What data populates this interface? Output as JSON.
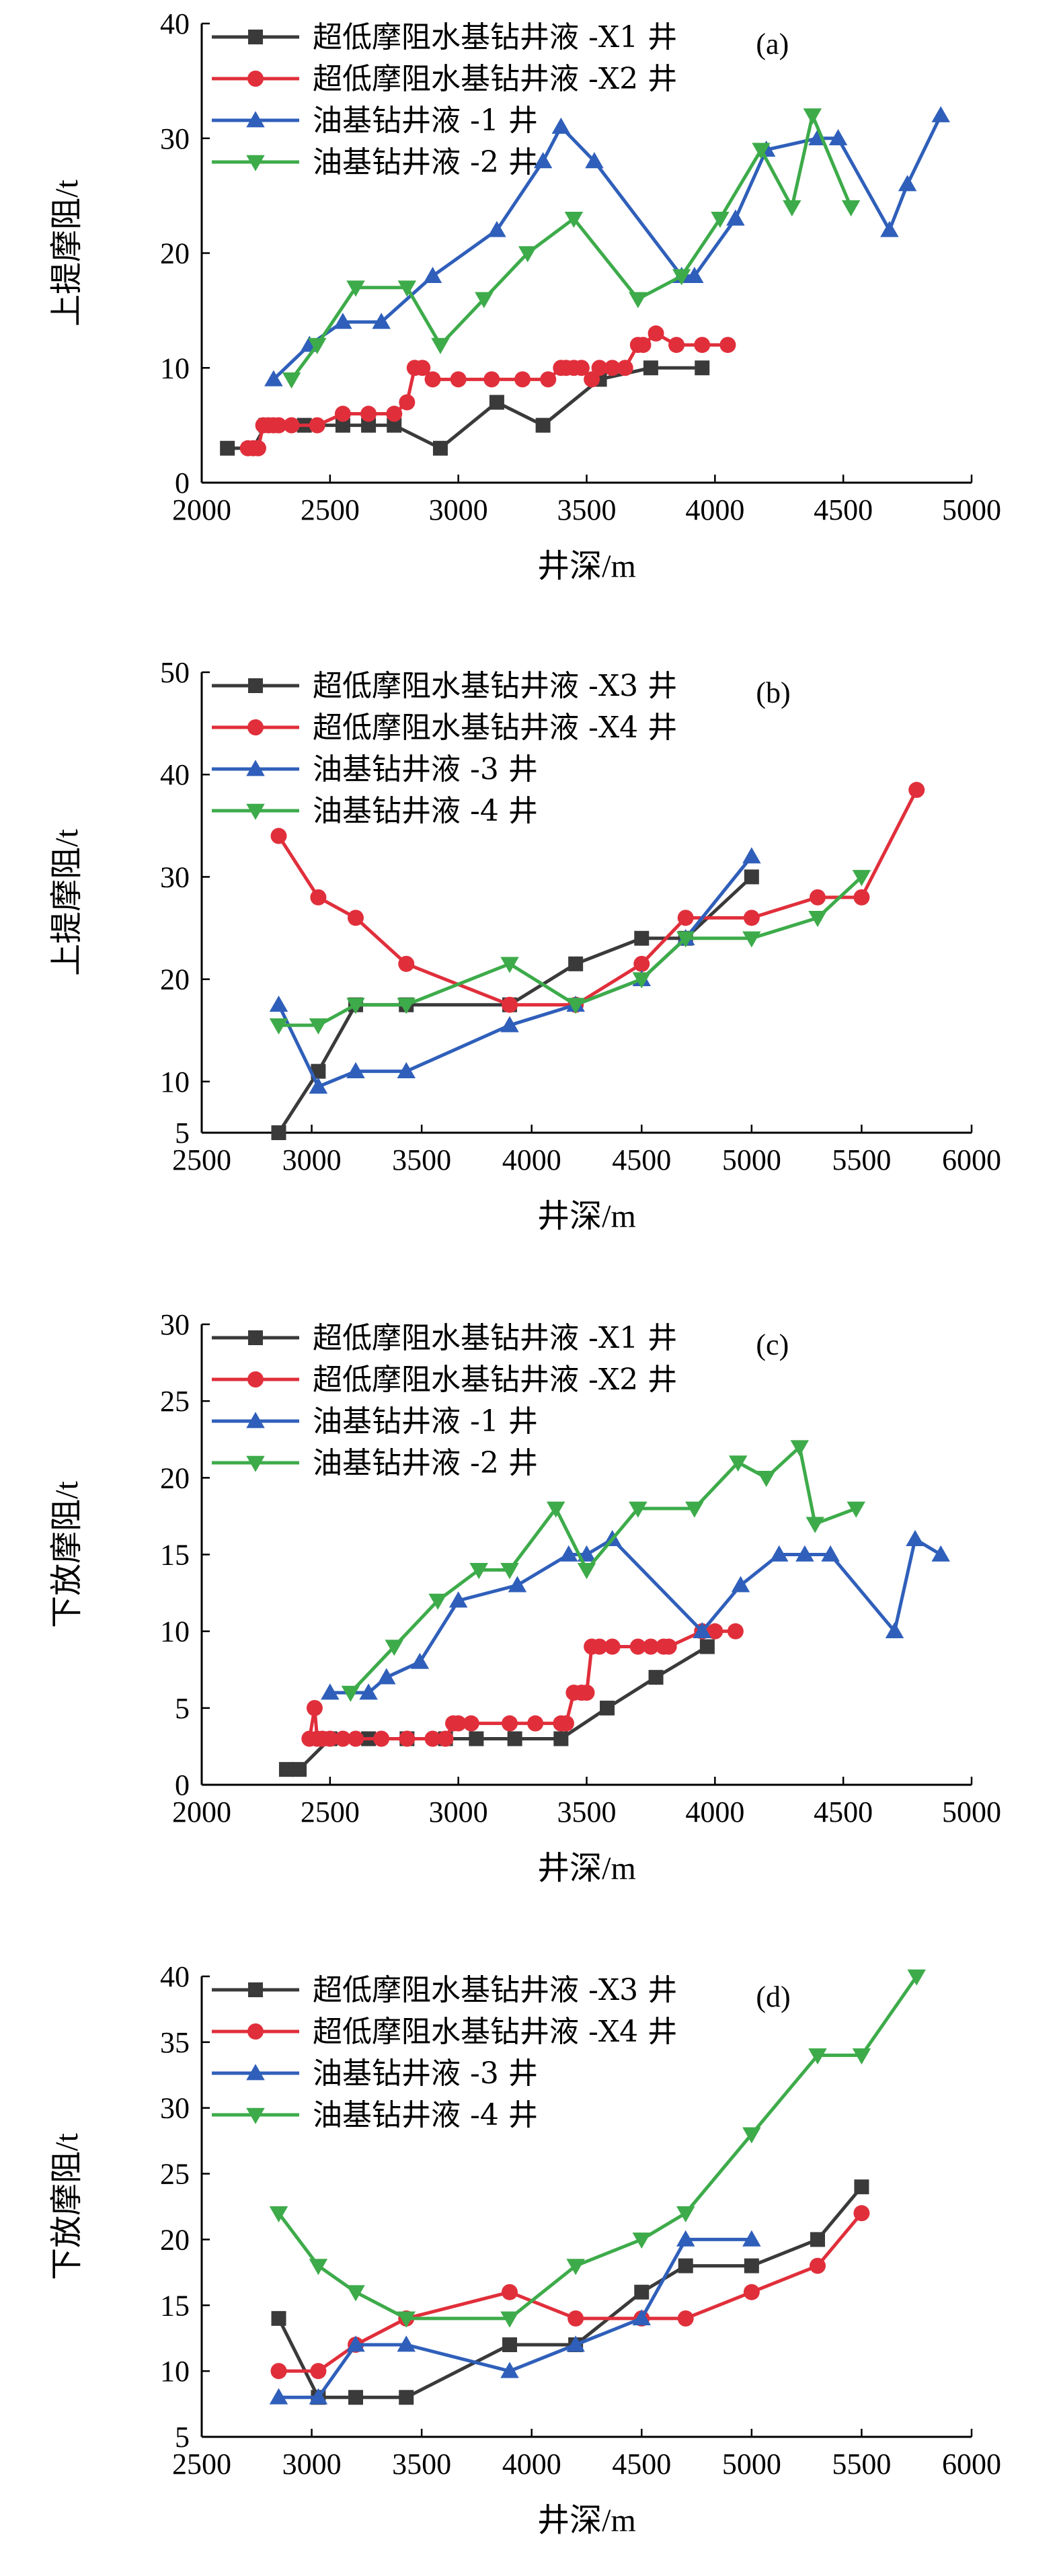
{
  "colors": {
    "black": "#3a3a3a",
    "red": "#e02f3b",
    "blue": "#2f5fba",
    "green": "#3dab4a"
  },
  "chart_data": [
    {
      "type": "line",
      "panel_label": "(a)",
      "xlabel": "井深/m",
      "ylabel": "上提摩阻/t",
      "xlim": [
        2000,
        5000
      ],
      "ylim": [
        0,
        40
      ],
      "xticks": [
        2000,
        2500,
        3000,
        3500,
        4000,
        4500,
        5000
      ],
      "yticks": [
        0,
        10,
        20,
        30,
        40
      ],
      "legend_position": "top-left",
      "series": [
        {
          "name": "超低摩阻水基钻井液 -X1 井",
          "color": "black",
          "marker": "square",
          "x": [
            2100,
            2200,
            2250,
            2400,
            2550,
            2650,
            2750,
            2930,
            3150,
            3330,
            3550,
            3750,
            3950
          ],
          "y": [
            3,
            3,
            5,
            5,
            5,
            5,
            5,
            3,
            7,
            5,
            9,
            10,
            10
          ]
        },
        {
          "name": "超低摩阻水基钻井液 -X2 井",
          "color": "red",
          "marker": "circle",
          "x": [
            2180,
            2200,
            2220,
            2240,
            2260,
            2280,
            2300,
            2350,
            2450,
            2550,
            2650,
            2750,
            2800,
            2830,
            2860,
            2900,
            3000,
            3130,
            3250,
            3350,
            3400,
            3420,
            3450,
            3480,
            3520,
            3550,
            3600,
            3650,
            3700,
            3720,
            3770,
            3850,
            3950,
            4050
          ],
          "y": [
            3,
            3,
            3,
            5,
            5,
            5,
            5,
            5,
            5,
            6,
            6,
            6,
            7,
            10,
            10,
            9,
            9,
            9,
            9,
            9,
            10,
            10,
            10,
            10,
            9,
            10,
            10,
            10,
            12,
            12,
            13,
            12,
            12,
            12
          ]
        },
        {
          "name": "油基钻井液 -1 井",
          "color": "blue",
          "marker": "triangle-up",
          "x": [
            2280,
            2420,
            2550,
            2700,
            2900,
            3150,
            3330,
            3400,
            3530,
            3870,
            3920,
            4080,
            4200,
            4400,
            4480,
            4680,
            4750,
            4880
          ],
          "y": [
            9,
            12,
            14,
            14,
            18,
            22,
            28,
            31,
            28,
            18,
            18,
            23,
            29,
            30,
            30,
            22,
            26,
            32
          ]
        },
        {
          "name": "油基钻井液 -2 井",
          "color": "green",
          "marker": "triangle-down",
          "x": [
            2350,
            2450,
            2600,
            2800,
            2930,
            3100,
            3270,
            3450,
            3700,
            3870,
            4020,
            4180,
            4300,
            4380,
            4530
          ],
          "y": [
            9,
            12,
            17,
            17,
            12,
            16,
            20,
            23,
            16,
            18,
            23,
            29,
            24,
            32,
            24
          ]
        }
      ]
    },
    {
      "type": "line",
      "panel_label": "(b)",
      "xlabel": "井深/m",
      "ylabel": "上提摩阻/t",
      "xlim": [
        2500,
        6000
      ],
      "ylim": [
        5,
        50
      ],
      "xticks": [
        2500,
        3000,
        3500,
        4000,
        4500,
        5000,
        5500,
        6000
      ],
      "yticks": [
        5,
        10,
        20,
        30,
        40,
        50
      ],
      "legend_position": "top-left",
      "series": [
        {
          "name": "超低摩阻水基钻井液 -X3 井",
          "color": "black",
          "marker": "square",
          "x": [
            2850,
            3030,
            3200,
            3430,
            3900,
            4200,
            4500,
            4700,
            5000
          ],
          "y": [
            5,
            11,
            17.5,
            17.5,
            17.5,
            21.5,
            24,
            24,
            30
          ]
        },
        {
          "name": "超低摩阻水基钻井液 -X4 井",
          "color": "red",
          "marker": "circle",
          "x": [
            2850,
            3030,
            3200,
            3430,
            3900,
            4200,
            4500,
            4700,
            5000,
            5300,
            5500,
            5750
          ],
          "y": [
            34,
            28,
            26,
            21.5,
            17.5,
            17.5,
            21.5,
            26,
            26,
            28,
            28,
            38.5
          ]
        },
        {
          "name": "油基钻井液 -3 井",
          "color": "blue",
          "marker": "triangle-up",
          "x": [
            2850,
            3030,
            3200,
            3430,
            3900,
            4200,
            4500,
            4700,
            5000
          ],
          "y": [
            17.5,
            9.5,
            11,
            11,
            15.5,
            17.5,
            20,
            24,
            32
          ]
        },
        {
          "name": "油基钻井液 -4 井",
          "color": "green",
          "marker": "triangle-down",
          "x": [
            2850,
            3030,
            3200,
            3430,
            3900,
            4200,
            4500,
            4700,
            5000,
            5300,
            5500
          ],
          "y": [
            15.5,
            15.5,
            17.5,
            17.5,
            21.5,
            17.5,
            20,
            24,
            24,
            26,
            30
          ]
        }
      ]
    },
    {
      "type": "line",
      "panel_label": "(c)",
      "xlabel": "井深/m",
      "ylabel": "下放摩阻/t",
      "xlim": [
        2000,
        5000
      ],
      "ylim": [
        0,
        30
      ],
      "xticks": [
        2000,
        2500,
        3000,
        3500,
        4000,
        4500,
        5000
      ],
      "yticks": [
        0,
        5,
        10,
        15,
        20,
        25,
        30
      ],
      "legend_position": "top-left",
      "series": [
        {
          "name": "超低摩阻水基钻井液 -X1 井",
          "color": "black",
          "marker": "square",
          "x": [
            2330,
            2380,
            2500,
            2650,
            2800,
            2950,
            3070,
            3220,
            3400,
            3580,
            3770,
            3970
          ],
          "y": [
            1,
            1,
            3,
            3,
            3,
            3,
            3,
            3,
            3,
            5,
            7,
            9
          ]
        },
        {
          "name": "超低摩阻水基钻井液 -X2 井",
          "color": "red",
          "marker": "circle",
          "x": [
            2420,
            2440,
            2450,
            2470,
            2500,
            2550,
            2600,
            2700,
            2800,
            2900,
            2950,
            2980,
            3000,
            3050,
            3200,
            3300,
            3400,
            3420,
            3450,
            3480,
            3500,
            3520,
            3550,
            3600,
            3700,
            3750,
            3800,
            3820,
            3950,
            4000,
            4080
          ],
          "y": [
            3,
            5,
            3,
            3,
            3,
            3,
            3,
            3,
            3,
            3,
            3,
            4,
            4,
            4,
            4,
            4,
            4,
            4,
            6,
            6,
            6,
            9,
            9,
            9,
            9,
            9,
            9,
            9,
            10,
            10,
            10
          ]
        },
        {
          "name": "油基钻井液 -1 井",
          "color": "blue",
          "marker": "triangle-up",
          "x": [
            2500,
            2650,
            2720,
            2850,
            3000,
            3230,
            3430,
            3500,
            3600,
            3950,
            4100,
            4250,
            4350,
            4450,
            4700,
            4780,
            4880
          ],
          "y": [
            6,
            6,
            7,
            8,
            12,
            13,
            15,
            15,
            16,
            10,
            13,
            15,
            15,
            15,
            10,
            16,
            15
          ]
        },
        {
          "name": "油基钻井液 -2 井",
          "color": "green",
          "marker": "triangle-down",
          "x": [
            2580,
            2750,
            2920,
            3080,
            3200,
            3380,
            3500,
            3700,
            3920,
            4090,
            4200,
            4330,
            4390,
            4550
          ],
          "y": [
            6,
            9,
            12,
            14,
            14,
            18,
            14,
            18,
            18,
            21,
            20,
            22,
            17,
            18
          ]
        }
      ]
    },
    {
      "type": "line",
      "panel_label": "(d)",
      "xlabel": "井深/m",
      "ylabel": "下放摩阻/t",
      "xlim": [
        2500,
        6000
      ],
      "ylim": [
        5,
        40
      ],
      "xticks": [
        2500,
        3000,
        3500,
        4000,
        4500,
        5000,
        5500,
        6000
      ],
      "yticks": [
        5,
        10,
        15,
        20,
        25,
        30,
        35,
        40
      ],
      "legend_position": "top-left",
      "series": [
        {
          "name": "超低摩阻水基钻井液 -X3 井",
          "color": "black",
          "marker": "square",
          "x": [
            2850,
            3030,
            3200,
            3430,
            3900,
            4200,
            4500,
            4700,
            5000,
            5300,
            5500
          ],
          "y": [
            14,
            8,
            8,
            8,
            12,
            12,
            16,
            18,
            18,
            20,
            24
          ]
        },
        {
          "name": "超低摩阻水基钻井液 -X4 井",
          "color": "red",
          "marker": "circle",
          "x": [
            2850,
            3030,
            3200,
            3430,
            3900,
            4200,
            4500,
            4700,
            5000,
            5300,
            5500
          ],
          "y": [
            10,
            10,
            12,
            14,
            16,
            14,
            14,
            14,
            16,
            18,
            22
          ]
        },
        {
          "name": "油基钻井液 -3 井",
          "color": "blue",
          "marker": "triangle-up",
          "x": [
            2850,
            3030,
            3200,
            3430,
            3900,
            4200,
            4500,
            4700,
            5000
          ],
          "y": [
            8,
            8,
            12,
            12,
            10,
            12,
            14,
            20,
            20
          ]
        },
        {
          "name": "油基钻井液 -4 井",
          "color": "green",
          "marker": "triangle-down",
          "x": [
            2850,
            3030,
            3200,
            3430,
            3900,
            4200,
            4500,
            4700,
            5000,
            5300,
            5500,
            5750
          ],
          "y": [
            22,
            18,
            16,
            14,
            14,
            18,
            20,
            22,
            28,
            34,
            34,
            40
          ]
        }
      ]
    }
  ]
}
